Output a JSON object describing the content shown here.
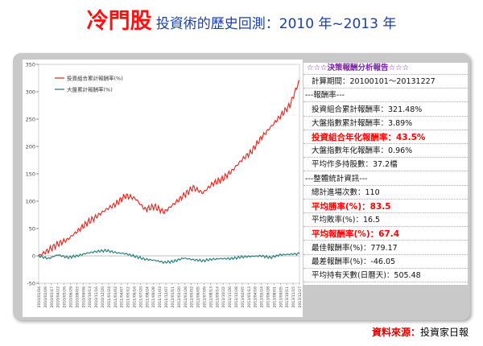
{
  "header": {
    "main_title": "冷門股",
    "subtitle": "投資術的歷史回測：2010 年~2013 年"
  },
  "report": {
    "rows": [
      {
        "text": "☆☆☆決策報酬分析報告☆☆☆",
        "style": "heading",
        "indent": 4
      },
      {
        "text": "計算期間：20100101～20131227",
        "style": "normal",
        "indent": 10
      },
      {
        "text": "---報酬率---",
        "style": "normal",
        "indent": 2
      },
      {
        "text": "投資組合累計報酬率：321.48%",
        "style": "normal",
        "indent": 10
      },
      {
        "text": "大盤指數累計報酬率：3.89%",
        "style": "normal",
        "indent": 10
      },
      {
        "text": "投資組合年化報酬率：43.5%",
        "style": "highlight",
        "indent": 10
      },
      {
        "text": "大盤指數年化報酬率：0.96%",
        "style": "normal",
        "indent": 10
      },
      {
        "text": "平均作多持股數：37.2檔",
        "style": "normal",
        "indent": 10
      },
      {
        "text": "---整體統計資訊---",
        "style": "normal",
        "indent": 2
      },
      {
        "text": "總計進場次數：110",
        "style": "normal",
        "indent": 10
      },
      {
        "text": "平均勝率(%)：83.5",
        "style": "highlight",
        "indent": 10
      },
      {
        "text": "平均敗率(%)：16.5",
        "style": "normal",
        "indent": 10
      },
      {
        "text": "平均報酬率(%)：67.4",
        "style": "highlight",
        "indent": 10
      },
      {
        "text": "最佳報酬率(%)：779.17",
        "style": "normal",
        "indent": 10
      },
      {
        "text": "最差報酬率(%)：-46.05",
        "style": "normal",
        "indent": 10
      },
      {
        "text": "平均持有天數(日曆天)：505.48",
        "style": "normal",
        "indent": 10
      }
    ]
  },
  "source": {
    "label": "資料來源：",
    "value": "投資家日報"
  },
  "chart_data": {
    "type": "line",
    "ylim": [
      -50,
      350
    ],
    "yticks": [
      -50,
      0,
      50,
      100,
      150,
      200,
      250,
      300,
      350
    ],
    "x": [
      "2010/01/04",
      "2010/02/26",
      "2010/04/22",
      "2010/06/14",
      "2010/08/05",
      "2010/09/28",
      "2010/11/19",
      "2011/01/13",
      "2011/03/08",
      "2011/04/29",
      "2011/06/22",
      "2011/08/15",
      "2011/10/05",
      "2011/11/28",
      "2012/01/17",
      "2012/03/12",
      "2012/05/03",
      "2012/06/26",
      "2012/08/17",
      "2012/10/11",
      "2012/12/04",
      "2013/01/28",
      "2013/03/26",
      "2013/05/20",
      "2013/07/12",
      "2013/09/04",
      "2013/10/28",
      "2013/12/27"
    ],
    "xticks": [
      "2010/01/04",
      "2010/02/09",
      "2010/03/17",
      "2010/04/22",
      "2010/05/26",
      "2010/06/29",
      "2010/08/03",
      "2010/09/06",
      "2010/10/13",
      "2010/11/16",
      "2010/12/20",
      "2011/01/24",
      "2011/03/02",
      "2011/04/07",
      "2011/05/12",
      "2011/06/16",
      "2011/07/20",
      "2011/08/24",
      "2011/09/28",
      "2011/11/03",
      "2011/12/07",
      "2012/01/11",
      "2012/02/20",
      "2012/03/26",
      "2012/05/02",
      "2012/06/05",
      "2012/07/09",
      "2012/08/13",
      "2012/09/14",
      "2012/10/22",
      "2012/11/26",
      "2012/12/28",
      "2013/02/05",
      "2013/03/13",
      "2013/04/18",
      "2013/05/24",
      "2013/06/28",
      "2013/08/01",
      "2013/09/05",
      "2013/10/11",
      "2013/11/15",
      "2013/12/27"
    ],
    "series": [
      {
        "name": "投資組合累計報酬率(%)",
        "color": "#e8211a",
        "values": [
          0,
          10,
          22,
          30,
          45,
          60,
          72,
          85,
          95,
          110,
          105,
          85,
          90,
          80,
          95,
          110,
          125,
          115,
          132,
          140,
          155,
          175,
          190,
          215,
          235,
          255,
          275,
          321
        ]
      },
      {
        "name": "大盤累計報酬率(%)",
        "color": "#1a7a72",
        "values": [
          0,
          -5,
          2,
          -3,
          0,
          5,
          8,
          10,
          6,
          4,
          -1,
          -6,
          -8,
          -12,
          -10,
          -4,
          -7,
          -9,
          -6,
          -5,
          -5,
          -2,
          -1,
          0,
          -3,
          2,
          3,
          4
        ]
      }
    ]
  }
}
